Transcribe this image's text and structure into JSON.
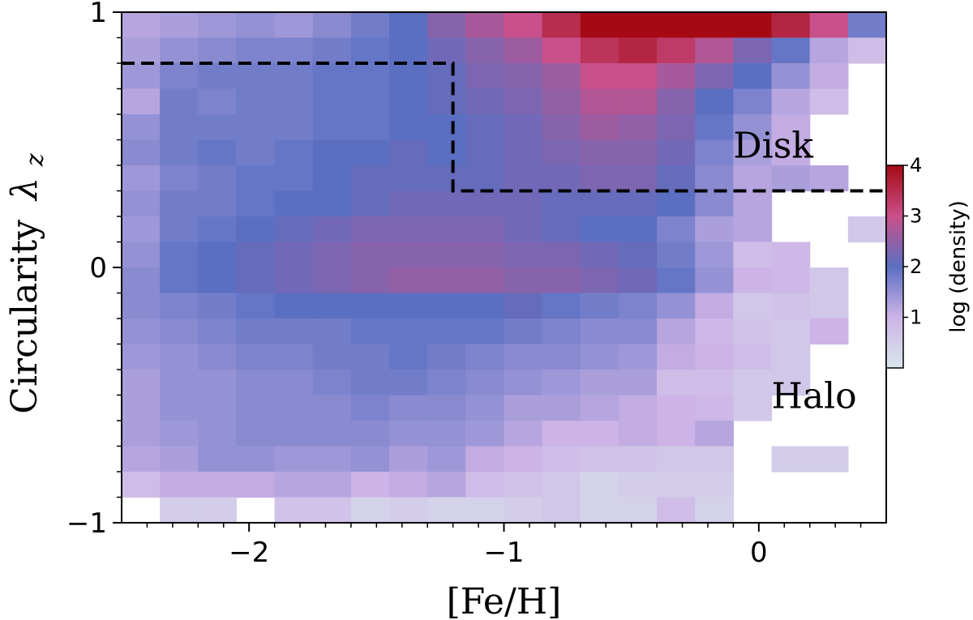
{
  "chart_data": {
    "type": "heatmap",
    "xlabel": "[Fe/H]",
    "ylabel": "Circularity",
    "ylabel_symbol": "λ",
    "ylabel_subscript": "z",
    "xlim": [
      -2.5,
      0.5
    ],
    "ylim": [
      -1,
      1
    ],
    "x_ticks": [
      -2,
      -1,
      0
    ],
    "x_tick_labels": [
      "−2",
      "−1",
      "0"
    ],
    "y_ticks": [
      -1,
      0,
      1
    ],
    "y_tick_labels": [
      "−1",
      "0",
      "1"
    ],
    "x_bin_start": -2.5,
    "x_bin_width": 0.15,
    "y_bin_start": -1.0,
    "y_bin_width": 0.1,
    "grid": false,
    "colorbar": {
      "label": "log (density)",
      "range": [
        0,
        4
      ],
      "ticks": [
        1,
        2,
        3,
        4
      ],
      "tick_labels": [
        "1",
        "2",
        "3",
        "4"
      ],
      "colors": [
        "#d8e6ec",
        "#cdb3e6",
        "#5b6fc2",
        "#c9508a",
        "#a50a14"
      ]
    },
    "regions": [
      {
        "label": "Disk",
        "x": -0.1,
        "y": 0.43
      },
      {
        "label": "Halo",
        "x": 0.05,
        "y": -0.55
      }
    ],
    "dashed_boundary": [
      [
        -2.5,
        0.8
      ],
      [
        -1.2,
        0.8
      ],
      [
        -1.2,
        0.3
      ],
      [
        0.5,
        0.3
      ]
    ],
    "log_density_rows_top_to_bottom": [
      [
        1.2,
        1.3,
        1.4,
        1.5,
        1.4,
        1.6,
        1.8,
        2.0,
        2.4,
        2.7,
        3.0,
        3.5,
        4.0,
        4.0,
        4.0,
        4.0,
        4.0,
        3.6,
        3.0,
        1.8
      ],
      [
        1.3,
        1.5,
        1.6,
        1.7,
        1.7,
        1.8,
        1.9,
        2.0,
        2.2,
        2.4,
        2.6,
        3.0,
        3.4,
        3.6,
        3.3,
        2.8,
        2.3,
        1.9,
        1.2,
        0.8
      ],
      [
        1.4,
        1.7,
        1.8,
        1.8,
        1.8,
        1.9,
        1.9,
        2.0,
        2.1,
        2.3,
        2.4,
        2.6,
        3.0,
        3.0,
        2.7,
        2.3,
        2.0,
        1.5,
        1.1,
        null
      ],
      [
        1.2,
        1.8,
        1.7,
        1.8,
        1.8,
        1.9,
        1.9,
        2.0,
        2.1,
        2.2,
        2.3,
        2.5,
        2.8,
        2.8,
        2.4,
        2.0,
        1.7,
        1.2,
        0.8,
        null
      ],
      [
        1.5,
        1.8,
        1.8,
        1.8,
        1.8,
        1.9,
        1.9,
        2.0,
        2.0,
        2.1,
        2.2,
        2.4,
        2.6,
        2.5,
        2.3,
        1.9,
        1.5,
        1.1,
        null,
        null
      ],
      [
        1.6,
        1.8,
        1.9,
        1.8,
        1.9,
        2.0,
        2.0,
        2.1,
        2.0,
        2.1,
        2.2,
        2.3,
        2.4,
        2.4,
        2.2,
        1.7,
        1.3,
        1.1,
        null,
        null
      ],
      [
        1.4,
        1.7,
        1.8,
        1.9,
        1.9,
        2.0,
        2.1,
        2.1,
        2.1,
        2.1,
        2.2,
        2.2,
        2.3,
        2.3,
        2.1,
        1.6,
        1.2,
        1.3,
        1.2,
        null
      ],
      [
        1.5,
        1.8,
        1.8,
        1.9,
        2.0,
        2.0,
        2.1,
        2.2,
        2.2,
        2.2,
        2.2,
        2.1,
        2.1,
        2.1,
        2.0,
        1.6,
        1.2,
        null,
        null,
        null
      ],
      [
        1.4,
        1.8,
        1.9,
        2.0,
        2.1,
        2.2,
        2.3,
        2.3,
        2.3,
        2.3,
        2.2,
        2.1,
        2.0,
        2.0,
        1.7,
        1.3,
        1.2,
        null,
        null,
        0.6
      ],
      [
        1.5,
        1.9,
        2.0,
        2.1,
        2.2,
        2.3,
        2.4,
        2.4,
        2.4,
        2.4,
        2.3,
        2.3,
        2.2,
        2.1,
        1.8,
        1.4,
        0.8,
        0.9,
        null,
        null
      ],
      [
        1.6,
        1.9,
        2.0,
        2.1,
        2.2,
        2.3,
        2.4,
        2.5,
        2.5,
        2.5,
        2.4,
        2.4,
        2.3,
        2.2,
        1.9,
        1.5,
        1.0,
        0.9,
        0.6,
        null
      ],
      [
        1.6,
        1.7,
        1.8,
        1.9,
        2.0,
        2.0,
        2.0,
        2.0,
        2.0,
        2.0,
        2.1,
        1.9,
        1.8,
        1.7,
        1.5,
        1.1,
        0.6,
        0.7,
        0.6,
        null
      ],
      [
        1.5,
        1.6,
        1.7,
        1.8,
        1.8,
        1.8,
        1.9,
        1.9,
        1.9,
        1.9,
        1.8,
        1.7,
        1.6,
        1.6,
        1.2,
        0.9,
        0.7,
        0.6,
        1.0,
        null
      ],
      [
        1.4,
        1.5,
        1.6,
        1.7,
        1.7,
        1.8,
        1.8,
        1.9,
        1.8,
        1.7,
        1.6,
        1.6,
        1.5,
        1.4,
        1.1,
        1.0,
        0.8,
        0.6,
        null,
        null
      ],
      [
        1.3,
        1.5,
        1.5,
        1.6,
        1.6,
        1.7,
        1.8,
        1.8,
        1.7,
        1.6,
        1.5,
        1.4,
        1.3,
        1.3,
        0.8,
        0.8,
        0.6,
        0.6,
        null,
        null
      ],
      [
        1.3,
        1.5,
        1.5,
        1.6,
        1.6,
        1.6,
        1.7,
        1.6,
        1.6,
        1.5,
        1.3,
        1.3,
        1.2,
        1.1,
        1.0,
        0.9,
        0.6,
        null,
        null,
        null
      ],
      [
        1.3,
        1.4,
        1.5,
        1.6,
        1.6,
        1.6,
        1.6,
        1.5,
        1.5,
        1.4,
        1.2,
        1.0,
        1.0,
        1.1,
        1.0,
        1.2,
        null,
        null,
        null,
        null
      ],
      [
        1.2,
        1.3,
        1.5,
        1.5,
        1.4,
        1.4,
        1.5,
        1.3,
        1.4,
        1.1,
        1.0,
        0.8,
        0.7,
        0.7,
        0.6,
        0.6,
        null,
        0.5,
        0.5,
        null
      ],
      [
        0.8,
        1.1,
        1.1,
        1.1,
        1.2,
        1.2,
        1.0,
        1.1,
        1.2,
        0.8,
        0.7,
        0.6,
        0.4,
        0.5,
        0.5,
        0.5,
        null,
        null,
        null,
        null
      ],
      [
        null,
        0.5,
        0.5,
        null,
        0.7,
        0.7,
        0.4,
        0.5,
        0.4,
        0.4,
        0.5,
        0.6,
        0.4,
        0.4,
        0.8,
        0.4,
        null,
        null,
        null,
        null
      ]
    ]
  }
}
